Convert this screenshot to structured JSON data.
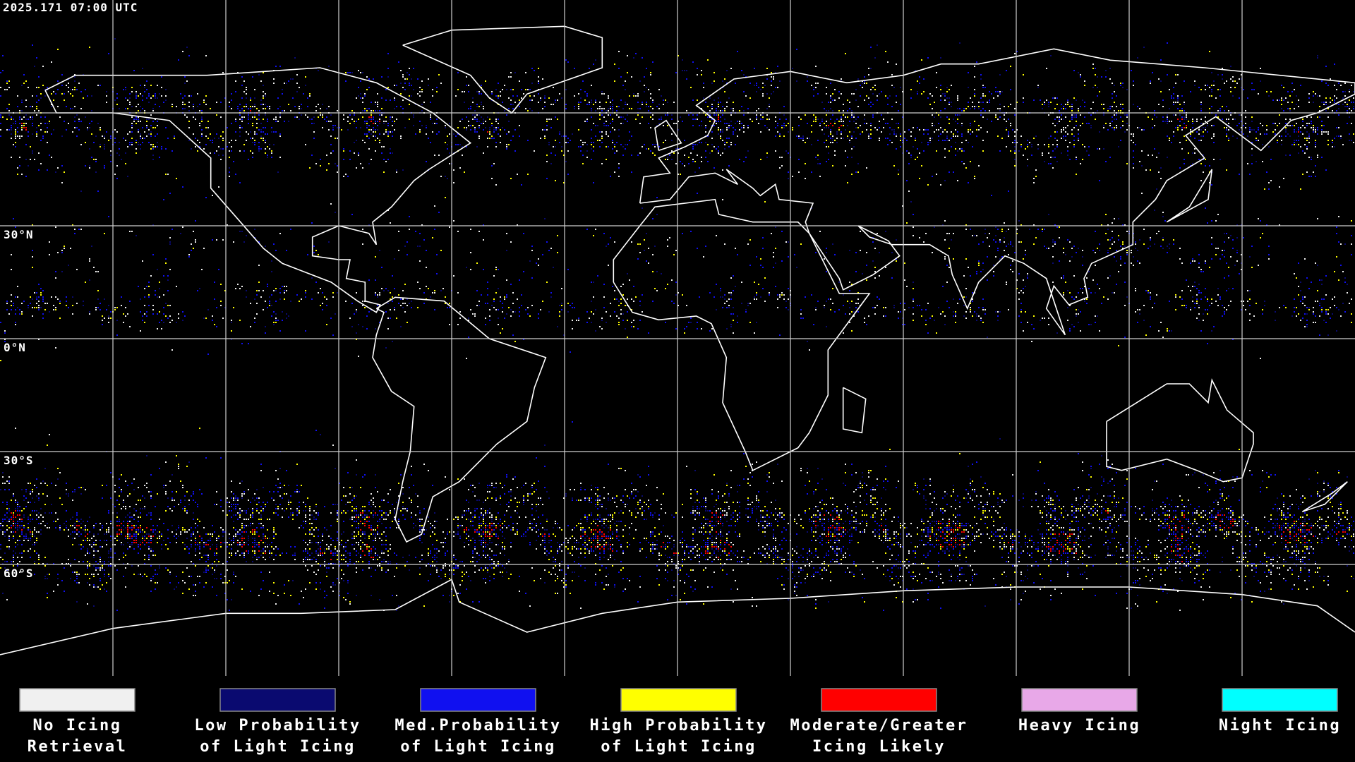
{
  "timestamp": "2025.171 07:00 UTC",
  "latitude_labels": [
    "30°N",
    "0°N",
    "30°S",
    "60°S"
  ],
  "legend": [
    {
      "lines": [
        "No Icing",
        "Retrieval"
      ],
      "color": "#f0f0f0"
    },
    {
      "lines": [
        "Low Probability",
        "of Light Icing"
      ],
      "color": "#0a0a70"
    },
    {
      "lines": [
        "Med.Probability",
        "of Light Icing"
      ],
      "color": "#1010f0"
    },
    {
      "lines": [
        "High Probability",
        "of Light Icing"
      ],
      "color": "#ffff00"
    },
    {
      "lines": [
        "Moderate/Greater",
        "Icing Likely"
      ],
      "color": "#ff0000"
    },
    {
      "lines": [
        "Heavy Icing"
      ],
      "color": "#e8a8e8"
    },
    {
      "lines": [
        "Night Icing"
      ],
      "color": "#00ffff"
    }
  ]
}
